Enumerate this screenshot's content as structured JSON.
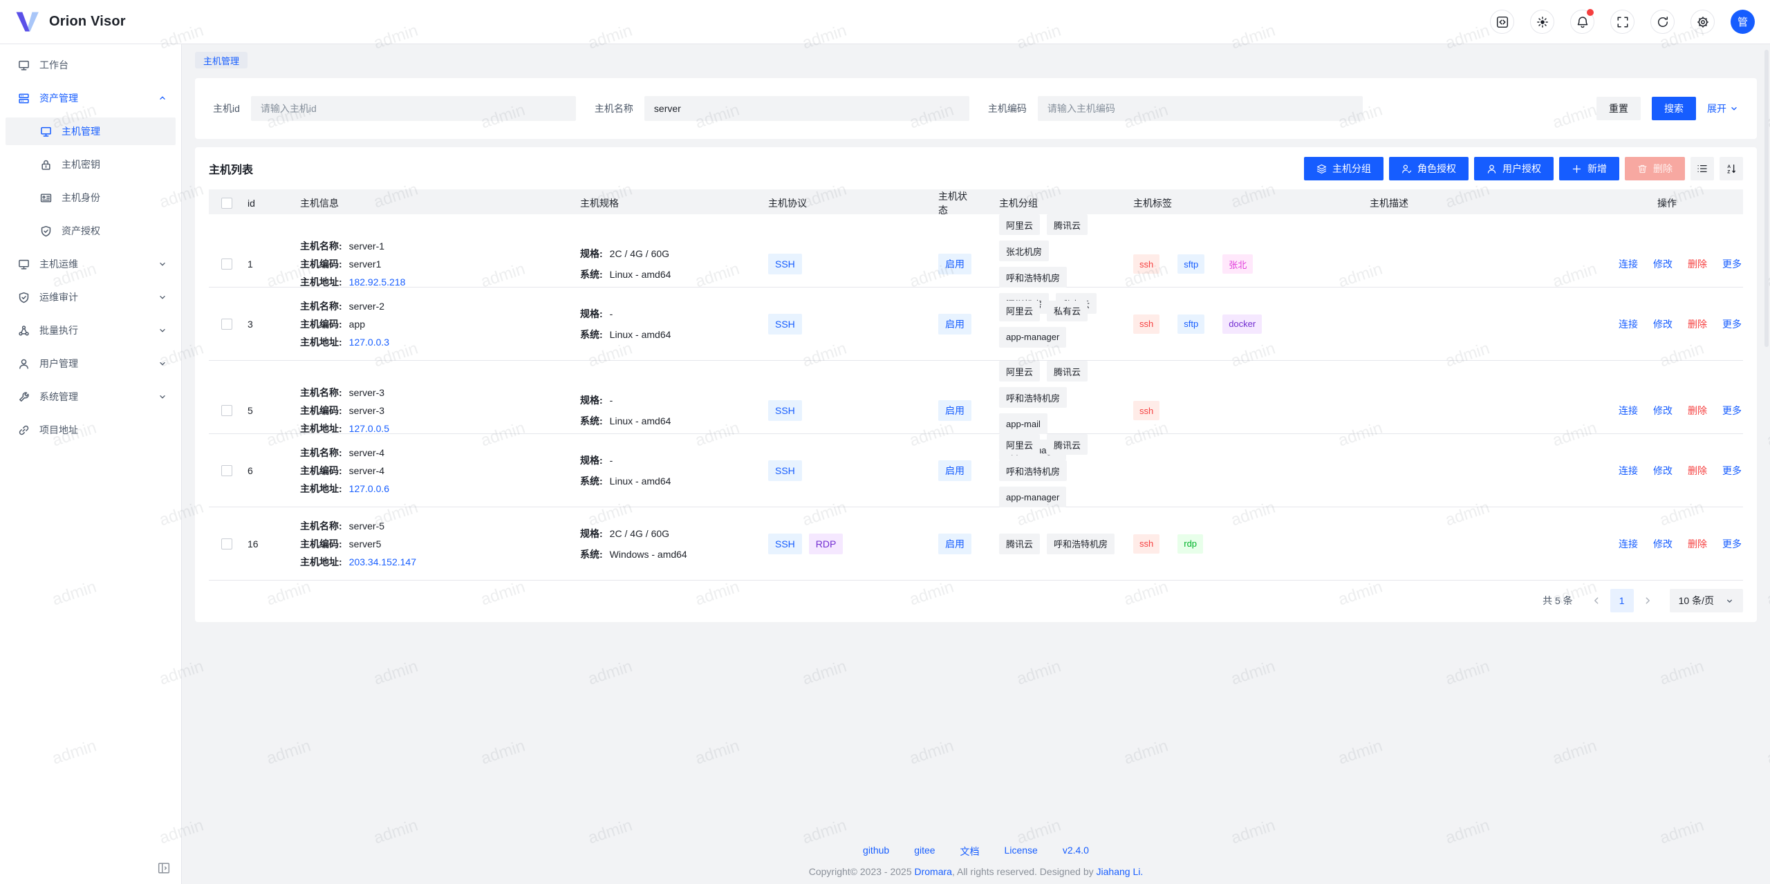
{
  "app": {
    "logo_text": "Orion Visor",
    "avatar_text": "管"
  },
  "header": {
    "actions": [
      {
        "name": "code",
        "icon": "code-square"
      },
      {
        "name": "theme",
        "icon": "sun"
      },
      {
        "name": "notifications",
        "icon": "bell",
        "badge": true
      },
      {
        "name": "fullscreen",
        "icon": "fullscreen"
      },
      {
        "name": "refresh",
        "icon": "refresh"
      },
      {
        "name": "settings",
        "icon": "gear"
      }
    ]
  },
  "sidebar": {
    "items": [
      {
        "label": "工作台",
        "icon": "desktop",
        "level": 1
      },
      {
        "label": "资产管理",
        "icon": "storage",
        "level": 1,
        "expanded": true,
        "highlight": true
      },
      {
        "label": "主机管理",
        "icon": "desktop",
        "level": 2,
        "selected": true
      },
      {
        "label": "主机密钥",
        "icon": "lock",
        "level": 2
      },
      {
        "label": "主机身份",
        "icon": "idcard",
        "level": 2
      },
      {
        "label": "资产授权",
        "icon": "shield",
        "level": 2
      },
      {
        "label": "主机运维",
        "icon": "desktop",
        "level": 1,
        "collapsible": true
      },
      {
        "label": "运维审计",
        "icon": "shield",
        "level": 1,
        "collapsible": true
      },
      {
        "label": "批量执行",
        "icon": "cluster",
        "level": 1,
        "collapsible": true
      },
      {
        "label": "用户管理",
        "icon": "user",
        "level": 1,
        "collapsible": true
      },
      {
        "label": "系统管理",
        "icon": "wrench",
        "level": 1,
        "collapsible": true
      },
      {
        "label": "项目地址",
        "icon": "link",
        "level": 1
      }
    ]
  },
  "tabbar": {
    "active_tab": "主机管理"
  },
  "filter": {
    "fields": [
      {
        "label": "主机id",
        "value": "",
        "placeholder": "请输入主机id"
      },
      {
        "label": "主机名称",
        "value": "server",
        "placeholder": ""
      },
      {
        "label": "主机编码",
        "value": "",
        "placeholder": "请输入主机编码"
      }
    ],
    "reset_label": "重置",
    "search_label": "搜索",
    "expand_label": "展开"
  },
  "list": {
    "title": "主机列表",
    "toolbar": [
      {
        "label": "主机分组",
        "icon": "layers",
        "style": "primary"
      },
      {
        "label": "角色授权",
        "icon": "user-check",
        "style": "primary"
      },
      {
        "label": "用户授权",
        "icon": "user",
        "style": "primary"
      },
      {
        "label": "新增",
        "icon": "plus",
        "style": "primary"
      },
      {
        "label": "删除",
        "icon": "trash",
        "style": "danger-disabled"
      }
    ],
    "columns": [
      "id",
      "主机信息",
      "主机规格",
      "主机协议",
      "主机状态",
      "主机分组",
      "主机标签",
      "主机描述",
      "操作"
    ],
    "row_labels": {
      "name": "主机名称:",
      "code": "主机编码:",
      "address": "主机地址:",
      "spec": "规格:",
      "system": "系统:"
    },
    "protocol_styles": {
      "SSH": "blue",
      "RDP": "purple"
    },
    "rows": [
      {
        "id": "1",
        "name": "server-1",
        "code": "server1",
        "address": "182.92.5.218",
        "spec": "2C / 4G / 60G",
        "system": "Linux - amd64",
        "protocols": [
          "SSH"
        ],
        "status": "启用",
        "groups": [
          "阿里云",
          "腾讯云",
          "张北机房",
          "呼和浩特机房",
          "深圳机房",
          "私有云"
        ],
        "tags": [
          {
            "text": "ssh",
            "color": "red"
          },
          {
            "text": "sftp",
            "color": "blue"
          },
          {
            "text": "张北",
            "color": "magenta"
          }
        ],
        "description": ""
      },
      {
        "id": "3",
        "name": "server-2",
        "code": "app",
        "address": "127.0.0.3",
        "spec": "-",
        "system": "Linux - amd64",
        "protocols": [
          "SSH"
        ],
        "status": "启用",
        "groups": [
          "阿里云",
          "私有云",
          "app-manager"
        ],
        "tags": [
          {
            "text": "ssh",
            "color": "red"
          },
          {
            "text": "sftp",
            "color": "blue"
          },
          {
            "text": "docker",
            "color": "purple"
          }
        ],
        "description": ""
      },
      {
        "id": "5",
        "name": "server-3",
        "code": "server-3",
        "address": "127.0.0.5",
        "spec": "-",
        "system": "Linux - amd64",
        "protocols": [
          "SSH"
        ],
        "status": "启用",
        "groups": [
          "阿里云",
          "腾讯云",
          "呼和浩特机房",
          "app-mail",
          "app-manager"
        ],
        "tags": [
          {
            "text": "ssh",
            "color": "red"
          }
        ],
        "description": ""
      },
      {
        "id": "6",
        "name": "server-4",
        "code": "server-4",
        "address": "127.0.0.6",
        "spec": "-",
        "system": "Linux - amd64",
        "protocols": [
          "SSH"
        ],
        "status": "启用",
        "groups": [
          "阿里云",
          "腾讯云",
          "呼和浩特机房",
          "app-manager"
        ],
        "tags": [],
        "description": ""
      },
      {
        "id": "16",
        "name": "server-5",
        "code": "server5",
        "address": "203.34.152.147",
        "spec": "2C / 4G / 60G",
        "system": "Windows - amd64",
        "protocols": [
          "SSH",
          "RDP"
        ],
        "status": "启用",
        "groups": [
          "腾讯云",
          "呼和浩特机房"
        ],
        "tags": [
          {
            "text": "ssh",
            "color": "red"
          },
          {
            "text": "rdp",
            "color": "green"
          }
        ],
        "description": ""
      }
    ],
    "row_actions": [
      {
        "label": "连接",
        "style": "link"
      },
      {
        "label": "修改",
        "style": "link"
      },
      {
        "label": "删除",
        "style": "danger"
      },
      {
        "label": "更多",
        "style": "link"
      }
    ]
  },
  "pagination": {
    "total": "共 5 条",
    "current_page": "1",
    "page_size": "10 条/页"
  },
  "footer": {
    "links": [
      "github",
      "gitee",
      "文档",
      "License",
      "v2.4.0"
    ],
    "copyright": [
      {
        "text": "Copyright© 2023 - 2025 "
      },
      {
        "text": "Dromara",
        "link": true
      },
      {
        "text": ", All rights reserved. Designed by "
      },
      {
        "text": "Jiahang Li.",
        "link": true
      }
    ]
  },
  "watermark": {
    "text": "admin"
  },
  "colors": {
    "primary": "#165dff",
    "status_chip": {
      "bg": "#e8f3ff",
      "fg": "#165dff"
    },
    "tag_palette": {
      "red": {
        "bg": "#ffece8",
        "fg": "#f53f3f"
      },
      "blue": {
        "bg": "#e8f3ff",
        "fg": "#165dff"
      },
      "magenta": {
        "bg": "#ffe8fb",
        "fg": "#e13edb"
      },
      "purple": {
        "bg": "#f5e8ff",
        "fg": "#722ed1"
      },
      "green": {
        "bg": "#e8ffea",
        "fg": "#00b42a"
      },
      "gray": {
        "bg": "#f2f3f5",
        "fg": "#1d2129"
      }
    }
  }
}
